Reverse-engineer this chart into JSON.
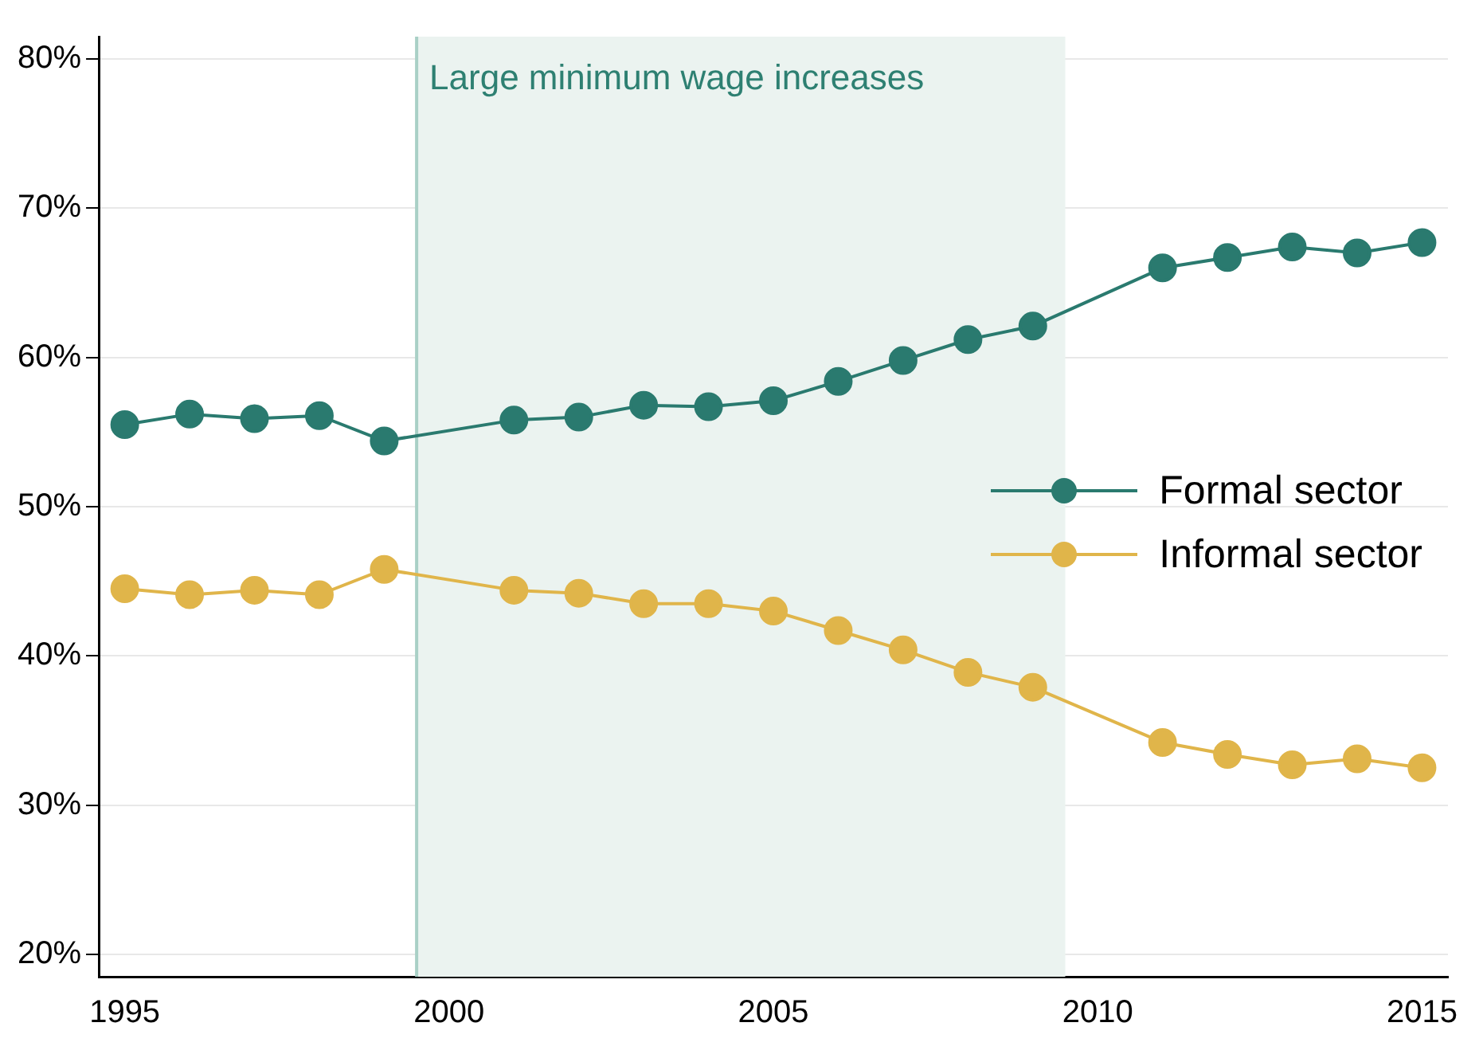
{
  "chart_data": {
    "type": "line",
    "x": [
      1995,
      1996,
      1997,
      1998,
      1999,
      2001,
      2002,
      2003,
      2004,
      2005,
      2006,
      2007,
      2008,
      2009,
      2011,
      2012,
      2013,
      2014,
      2015
    ],
    "series": [
      {
        "name": "Formal sector",
        "color": "#2a7a6f",
        "values": [
          55.5,
          56.2,
          55.9,
          56.1,
          54.4,
          55.8,
          56.0,
          56.8,
          56.7,
          57.1,
          58.4,
          59.8,
          61.2,
          62.1,
          66.0,
          66.7,
          67.4,
          67.0,
          67.7
        ]
      },
      {
        "name": "Informal sector",
        "color": "#e0b54a",
        "values": [
          44.5,
          44.1,
          44.4,
          44.1,
          45.8,
          44.4,
          44.2,
          43.5,
          43.5,
          43.0,
          41.7,
          40.4,
          38.9,
          37.9,
          34.2,
          33.4,
          32.7,
          33.1,
          32.5
        ]
      }
    ],
    "xlim": [
      1994.6,
      2015.4
    ],
    "xticks": [
      1995,
      2000,
      2005,
      2010,
      2015
    ],
    "ylim": [
      18.5,
      81.5
    ],
    "yticks": [
      {
        "value": 20,
        "label": "20%"
      },
      {
        "value": 30,
        "label": "30%"
      },
      {
        "value": 40,
        "label": "40%"
      },
      {
        "value": 50,
        "label": "50%"
      },
      {
        "value": 60,
        "label": "60%"
      },
      {
        "value": 70,
        "label": "70%"
      },
      {
        "value": 80,
        "label": "80%"
      }
    ],
    "bands": [
      {
        "axis": "x",
        "from": 1999.5,
        "to": 2009.5,
        "label": "Large minimum wage increases",
        "color": "#ebf3f0"
      }
    ],
    "ref_lines": [
      {
        "axis": "x",
        "value": 1999.5,
        "color": "#a9d0c6"
      }
    ],
    "grid": "y",
    "legend": "right",
    "marker": "circle",
    "line_style": "solid"
  }
}
